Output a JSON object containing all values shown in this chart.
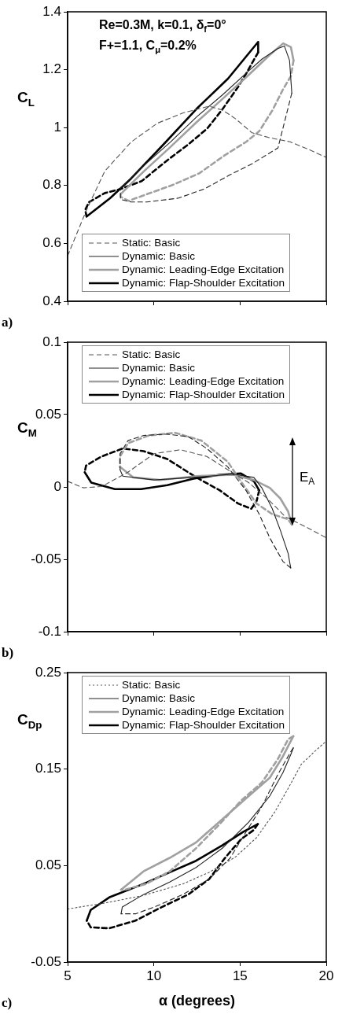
{
  "chart_data": [
    {
      "type": "line",
      "title": "a)",
      "ylabel": "C$_{L}$",
      "annotations": [
        "Re=0.3M, k=0.1, δ$_{f}$=0°",
        "F+=1.1, C$_{μ}$=0.2%"
      ],
      "xlim": [
        5,
        20
      ],
      "xticks": [
        5,
        10,
        15,
        20
      ],
      "ylim": [
        0.4,
        1.4
      ],
      "yticks": [
        0.4,
        0.6,
        0.8,
        1,
        1.2,
        1.4
      ],
      "tick_labels": "y",
      "legend": "bottom",
      "marker": "none",
      "series": [
        {
          "name": "Static: Basic",
          "color": "#555555",
          "line_style": "dashed",
          "x": [
            5,
            6.1,
            7.16,
            8.68,
            10.2,
            11.7,
            13.2,
            14.0,
            14.75,
            15.67,
            16.7,
            17.9,
            19.0,
            20
          ],
          "values": [
            0.557,
            0.716,
            0.85,
            0.95,
            1.015,
            1.051,
            1.074,
            1.06,
            1.03,
            0.983,
            0.965,
            0.951,
            0.924,
            0.897
          ]
        },
        {
          "name": "Dynamic: Basic",
          "color": "#222222",
          "line_style": "solid",
          "x": [
            8.07,
            9.44,
            10.96,
            12.48,
            14.0,
            15.5,
            16.28,
            17.19,
            17.57,
            17.87,
            18.0
          ],
          "values": [
            0.79,
            0.87,
            0.95,
            1.037,
            1.114,
            1.196,
            1.237,
            1.273,
            1.282,
            1.232,
            1.119
          ]
        },
        {
          "color": "#222222",
          "line_style": "dashed",
          "x": [
            18.0,
            17.2,
            16.3,
            15.67,
            14.45,
            12.93,
            11.4,
            9.6,
            8.68,
            8.07,
            8.07
          ],
          "values": [
            1.119,
            0.93,
            0.897,
            0.874,
            0.838,
            0.788,
            0.756,
            0.743,
            0.743,
            0.752,
            0.79
          ]
        },
        {
          "name": "Dynamic: Leading-Edge Excitation",
          "color": "#a0a0a0",
          "line_style": "solid",
          "x": [
            8.07,
            9.44,
            10.96,
            12.48,
            14.0,
            15.5,
            16.7,
            17.5,
            17.95,
            18.1
          ],
          "values": [
            0.77,
            0.85,
            0.933,
            1.019,
            1.1,
            1.182,
            1.25,
            1.291,
            1.278,
            1.232
          ]
        },
        {
          "color": "#a0a0a0",
          "line_style": "dashed",
          "x": [
            18.1,
            17.95,
            17.5,
            16.88,
            16.12,
            15.36,
            14.15,
            12.63,
            11.1,
            9.6,
            8.53,
            8.07,
            8.07
          ],
          "values": [
            1.232,
            1.178,
            1.133,
            1.06,
            0.988,
            0.951,
            0.906,
            0.842,
            0.802,
            0.77,
            0.747,
            0.761,
            0.77
          ]
        },
        {
          "name": "Dynamic: Flap-Shoulder Excitation",
          "color": "#000000",
          "line_style": "solid",
          "x": [
            6.1,
            7.46,
            8.68,
            10.5,
            12.48,
            14.3,
            16.05,
            16.05
          ],
          "values": [
            0.693,
            0.756,
            0.824,
            0.938,
            1.065,
            1.169,
            1.296,
            1.26
          ]
        },
        {
          "color": "#000000",
          "line_style": "dashed",
          "x": [
            16.05,
            15.36,
            14.9,
            14.0,
            13.1,
            12.0,
            10.8,
            9.29,
            8.07,
            7.16,
            6.25,
            6.02,
            6.1
          ],
          "values": [
            1.26,
            1.187,
            1.142,
            1.065,
            0.997,
            0.942,
            0.888,
            0.815,
            0.788,
            0.774,
            0.743,
            0.716,
            0.693
          ]
        }
      ]
    },
    {
      "type": "line",
      "title": "b)",
      "ylabel": "C$_{M}$",
      "annotations": [
        "E$_{A}$"
      ],
      "xlim": [
        5,
        20
      ],
      "xticks": [
        5,
        10,
        15,
        20
      ],
      "ylim": [
        -0.1,
        0.1
      ],
      "yticks": [
        -0.1,
        -0.05,
        0,
        0.05,
        0.1
      ],
      "tick_labels": "y",
      "legend": "top",
      "marker": "none",
      "series": [
        {
          "name": "Static: Basic",
          "color": "#555555",
          "line_style": "dashed",
          "x": [
            5,
            5.91,
            6.98,
            8.5,
            10.02,
            11.54,
            13.07,
            14.28,
            15.5,
            16.57,
            17.63,
            18.85,
            20
          ],
          "values": [
            0.0039,
            -0.0006,
            0.0003,
            0.0102,
            0.023,
            0.0257,
            0.0211,
            0.012,
            0.003,
            -0.0079,
            -0.0206,
            -0.0278,
            -0.0351
          ]
        },
        {
          "name": "Dynamic: Basic",
          "color": "#222222",
          "line_style": "solid",
          "x": [
            8.04,
            8.2,
            10.02,
            12.3,
            14.59,
            15.8,
            16.26,
            16.87,
            17.33,
            17.79,
            17.94
          ],
          "values": [
            0.012,
            0.0075,
            0.0048,
            0.0066,
            0.0088,
            0.0066,
            -0.0006,
            -0.0151,
            -0.0297,
            -0.046,
            -0.056
          ]
        },
        {
          "color": "#222222",
          "line_style": "dashed",
          "x": [
            17.94,
            17.48,
            16.72,
            16.11,
            15.35,
            14.28,
            13.07,
            12.0,
            10.78,
            9.41,
            8.5,
            8.04,
            8.04
          ],
          "values": [
            -0.056,
            -0.0514,
            -0.0351,
            -0.0188,
            -0.0025,
            0.0139,
            0.0266,
            0.0347,
            0.0365,
            0.0356,
            0.032,
            0.0229,
            0.012
          ]
        },
        {
          "name": "Dynamic: Leading-Edge Excitation",
          "color": "#a0a0a0",
          "line_style": "solid",
          "x": [
            8.04,
            8.8,
            10.33,
            12.46,
            14.59,
            15.8,
            16.72,
            17.33,
            17.79,
            18.0
          ],
          "values": [
            0.0139,
            0.0066,
            0.0048,
            0.0075,
            0.0084,
            0.0048,
            -0.0006,
            -0.0079,
            -0.017,
            -0.026
          ]
        },
        {
          "color": "#a0a0a0",
          "line_style": "dashed",
          "x": [
            18.0,
            17.79,
            16.87,
            15.96,
            15.2,
            14.28,
            12.76,
            11.24,
            9.72,
            8.5,
            8.04,
            8.04
          ],
          "values": [
            -0.026,
            -0.0224,
            -0.0188,
            -0.0115,
            0.0012,
            0.0175,
            0.032,
            0.0374,
            0.0356,
            0.0302,
            0.0211,
            0.0139
          ]
        },
        {
          "name": "Dynamic: Flap-Shoulder Excitation",
          "color": "#000000",
          "line_style": "solid",
          "x": [
            5.99,
            6.37,
            7.74,
            9.26,
            10.78,
            12.3,
            13.83,
            15.05,
            15.81,
            16.11
          ],
          "values": [
            0.0102,
            0.003,
            -0.0015,
            -0.0015,
            0.0012,
            0.0057,
            0.0084,
            0.0093,
            0.0039,
            -0.0024
          ]
        },
        {
          "color": "#000000",
          "line_style": "dashed",
          "x": [
            16.11,
            15.96,
            15.65,
            14.89,
            13.83,
            12.46,
            10.78,
            9.41,
            8.2,
            6.98,
            6.07,
            5.99
          ],
          "values": [
            -0.0024,
            -0.0097,
            -0.0151,
            -0.0115,
            -0.0024,
            0.0066,
            0.0193,
            0.0247,
            0.0266,
            0.0211,
            0.0148,
            0.0102
          ]
        }
      ]
    },
    {
      "type": "line",
      "title": "c)",
      "ylabel": "C$_{Dp}$",
      "xlabel": "α (degrees)",
      "xlim": [
        5,
        20
      ],
      "xticks": [
        5,
        10,
        15,
        20
      ],
      "ylim": [
        -0.05,
        0.25
      ],
      "yticks": [
        -0.05,
        0.05,
        0.15,
        0.25
      ],
      "legend": "top",
      "marker": "none",
      "series": [
        {
          "name": "Static: Basic",
          "color": "#555555",
          "line_style": "dotted",
          "x": [
            5,
            7.1,
            9.39,
            11.68,
            13.21,
            14.74,
            15.96,
            17.03,
            17.79,
            18.55,
            19.31,
            20
          ],
          "values": [
            0.005,
            0.011,
            0.019,
            0.031,
            0.043,
            0.059,
            0.079,
            0.106,
            0.13,
            0.155,
            0.168,
            0.179
          ]
        },
        {
          "name": "Dynamic: Basic",
          "color": "#222222",
          "line_style": "solid",
          "x": [
            8.1,
            8.17,
            9.4,
            10.92,
            12.45,
            13.97,
            15.5,
            16.72,
            17.48,
            17.94,
            18.09
          ],
          "values": [
            0.0,
            0.007,
            0.02,
            0.033,
            0.048,
            0.068,
            0.095,
            0.122,
            0.146,
            0.165,
            0.172
          ]
        },
        {
          "color": "#222222",
          "line_style": "dashed",
          "x": [
            18.09,
            17.94,
            17.18,
            16.26,
            15.35,
            14.43,
            13.21,
            11.68,
            10.16,
            8.94,
            8.17,
            8.1
          ],
          "values": [
            0.172,
            0.168,
            0.144,
            0.111,
            0.085,
            0.058,
            0.036,
            0.02,
            0.008,
            0.0,
            0.0,
            0.0
          ]
        },
        {
          "name": "Dynamic: Leading-Edge Excitation",
          "color": "#a0a0a0",
          "line_style": "solid",
          "x": [
            8.1,
            9.4,
            10.92,
            12.45,
            13.97,
            15.5,
            16.72,
            17.48,
            18.09
          ],
          "values": [
            0.025,
            0.044,
            0.058,
            0.074,
            0.098,
            0.122,
            0.141,
            0.163,
            0.184
          ]
        },
        {
          "color": "#a0a0a0",
          "line_style": "dashed",
          "x": [
            18.09,
            17.79,
            17.18,
            16.26,
            15.04,
            13.82,
            12.45,
            10.92,
            9.55,
            8.33,
            8.1
          ],
          "values": [
            0.184,
            0.181,
            0.16,
            0.136,
            0.117,
            0.093,
            0.068,
            0.044,
            0.031,
            0.025,
            0.025
          ]
        },
        {
          "name": "Dynamic: Flap-Shoulder Excitation",
          "color": "#000000",
          "line_style": "solid",
          "x": [
            6.11,
            6.34,
            7.41,
            9.4,
            10.92,
            12.45,
            13.97,
            15.19,
            16.03
          ],
          "values": [
            -0.007,
            0.004,
            0.017,
            0.031,
            0.043,
            0.055,
            0.071,
            0.085,
            0.093
          ]
        },
        {
          "color": "#000000",
          "line_style": "dashed",
          "x": [
            16.03,
            15.8,
            15.04,
            14.13,
            13.21,
            11.99,
            10.46,
            8.94,
            7.41,
            6.34,
            6.11
          ],
          "values": [
            0.093,
            0.087,
            0.077,
            0.058,
            0.036,
            0.02,
            0.007,
            -0.007,
            -0.015,
            -0.014,
            -0.007
          ]
        }
      ]
    }
  ]
}
